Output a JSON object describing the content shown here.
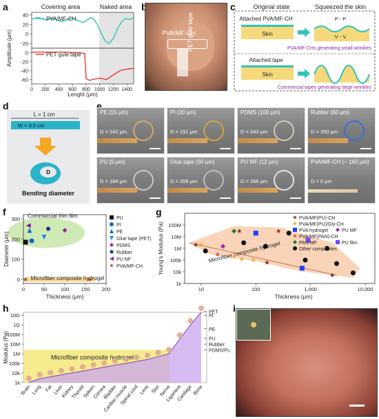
{
  "panels": {
    "a": {
      "label": "a",
      "region_left": "Covering area",
      "region_right": "Naked area",
      "ylabel": "Amplitude (μm)",
      "xlabel": "Lenght (μm)",
      "top": {
        "series_name": "PVA/MF-CH",
        "color": "#2ec4b6",
        "yticks": [
          "40",
          "20",
          "0",
          "-20"
        ],
        "ylim": [
          -30,
          45
        ],
        "x": [
          0,
          50,
          100,
          150,
          200,
          250,
          300,
          350,
          400,
          450,
          500,
          550,
          600,
          650,
          700,
          750,
          780,
          820,
          870,
          920,
          970,
          1020,
          1080,
          1140,
          1200,
          1260,
          1320,
          1380,
          1440,
          1500
        ],
        "y": [
          30,
          33,
          34,
          32,
          29,
          30,
          33,
          31,
          27,
          26,
          28,
          31,
          33,
          30,
          27,
          24,
          25,
          30,
          34,
          30,
          18,
          2,
          -15,
          -20,
          -10,
          10,
          25,
          32,
          30,
          34
        ]
      },
      "bottom": {
        "series_name": "PET gule tape",
        "color": "#e53935",
        "yticks": [
          "0",
          "-20",
          "-40",
          "-60"
        ],
        "ylim": [
          -70,
          10
        ],
        "x": [
          0,
          100,
          200,
          300,
          400,
          500,
          600,
          700,
          780,
          800,
          850,
          900,
          1000,
          1100,
          1200,
          1300,
          1400,
          1500
        ],
        "y": [
          1,
          1,
          1,
          1,
          1,
          1,
          0,
          0,
          -2,
          -58,
          -62,
          -60,
          -57,
          -60,
          -50,
          -40,
          -37,
          -35
        ]
      },
      "xticks": [
        "0",
        "200",
        "400",
        "600",
        "800",
        "1000",
        "1200",
        "1400"
      ]
    },
    "b": {
      "label": "b",
      "text1": "PVA/MF-CH",
      "text2": "PET glue tape"
    },
    "c": {
      "label": "c",
      "title_left": "Original state",
      "title_right": "Squeezed the skin",
      "attached1": "Attached PVA/MF-CH",
      "skin": "Skin",
      "pp": "P - P",
      "vv": "V - V",
      "caption1": "PVA/MF-CHs generating small wrinkles",
      "attached2": "Attached tape",
      "caption2": "Commercial tapes generating large wrinkles"
    },
    "d": {
      "label": "d",
      "length": "L = 1 cm",
      "width": "W = 0.5 cm",
      "D": "D",
      "caption": "Bending diameter"
    },
    "e": {
      "label": "e",
      "tiles": [
        {
          "name": "PE (15 μm)",
          "value": "D = 242 μm",
          "loop": "#d6a86a"
        },
        {
          "name": "PI (20 μm)",
          "value": "D = 191 μm",
          "loop": "#d4a43b"
        },
        {
          "name": "PDMS (100 μm)",
          "value": "D = 243 μm",
          "loop": "#cfc8b8"
        },
        {
          "name": "Rubber (60 μm)",
          "value": "D = 250 μm",
          "loop": "#3a6fd8"
        },
        {
          "name": "PU (5 μm)",
          "value": "D = 184 μm",
          "loop": "#c9c9c9"
        },
        {
          "name": "Glue tape (50 μm)",
          "value": "D = 209 μm",
          "loop": "#bdbdbd"
        },
        {
          "name": "PU MF (12 μm)",
          "value": "D = 266 μm",
          "loop": "#e3e3e3"
        },
        {
          "name": "PVA/MF-CH (~ 160 μm)",
          "value": "D = 0 μm",
          "loop": "none"
        }
      ]
    },
    "f": {
      "label": "f",
      "chart_data": {
        "type": "scatter",
        "xlabel": "Thickness (μm)",
        "ylabel": "Diameter (μm)",
        "xlim": [
          0,
          200
        ],
        "ylim": [
          -20,
          320
        ],
        "xticks": [
          "0",
          "50",
          "100",
          "150",
          "200"
        ],
        "yticks": [
          "0",
          "100",
          "200",
          "300"
        ],
        "annotation_top": "Commercial thin film",
        "annotation_bottom": "Microfiber composite hydrogel",
        "legend_position": "right",
        "series": [
          {
            "name": "PU",
            "color": "#111111",
            "shape": "square",
            "x": [
              5
            ],
            "y": [
              184
            ]
          },
          {
            "name": "PI",
            "color": "#1565c0",
            "shape": "circle",
            "x": [
              20
            ],
            "y": [
              191
            ]
          },
          {
            "name": "PE",
            "color": "#1565c0",
            "shape": "triangle",
            "x": [
              15
            ],
            "y": [
              242
            ]
          },
          {
            "name": "Glue tape (PET)",
            "color": "#1e88e5",
            "shape": "triangle-down",
            "x": [
              50
            ],
            "y": [
              209
            ]
          },
          {
            "name": "PDMS",
            "color": "#9c27b0",
            "shape": "diamond",
            "x": [
              100
            ],
            "y": [
              243
            ]
          },
          {
            "name": "Rubber",
            "color": "#283593",
            "shape": "pentagon",
            "x": [
              60
            ],
            "y": [
              250
            ]
          },
          {
            "name": "PU NF",
            "color": "#7b1fa2",
            "shape": "triangle-left",
            "x": [
              12
            ],
            "y": [
              266
            ]
          },
          {
            "name": "PVA/MF-CH",
            "color": "#a5512b",
            "shape": "star",
            "x": [
              5,
              160
            ],
            "y": [
              0,
              0
            ]
          }
        ]
      }
    },
    "g": {
      "label": "g",
      "chart_data": {
        "type": "scatter",
        "xlabel": "Thickness (μm)",
        "ylabel": "Young's Modulus (Pa)",
        "xscale": "log",
        "yscale": "log",
        "xlim": [
          5,
          15000
        ],
        "ylim": [
          1000,
          1000000000
        ],
        "xticks": [
          "10",
          "100",
          "1,000",
          "10,000"
        ],
        "yticks": [
          "1k",
          "10k",
          "100k",
          "1M",
          "10M",
          "100M"
        ],
        "annotation": "Microfiber composite hydrogel",
        "series": [
          {
            "name": "PVA/MF(PU)-CH",
            "color": "#8b2a1a",
            "shape": "star",
            "x": [
              8,
              50,
              160,
              260,
              2500
            ],
            "y": [
              2000000,
              30000000,
              60000,
              30000000,
              5000
            ]
          },
          {
            "name": "PVA/MF(PU)/Gly-CH",
            "color": "#f5a623",
            "shape": "star",
            "x": [
              10,
              40,
              55,
              90
            ],
            "y": [
              2000000,
              200000,
              120000,
              100000
            ]
          },
          {
            "name": "PVA hydrogel",
            "color": "#1e40ff",
            "shape": "square",
            "x": [
              100,
              700
            ],
            "y": [
              20000000,
              20000
            ]
          },
          {
            "name": "PVA/MF(PAN)-CH",
            "color": "#d94a4a",
            "shape": "star",
            "x": [
              12,
              20
            ],
            "y": [
              700000,
              300000
            ]
          },
          {
            "name": "PAN MF",
            "color": "#1a7f2e",
            "shape": "diamond",
            "x": [
              40
            ],
            "y": [
              30000000
            ]
          },
          {
            "name": "PU MF",
            "color": "#9c27b0",
            "shape": "diamond",
            "x": [
              25
            ],
            "y": [
              1500000
            ]
          },
          {
            "name": "PU film",
            "color": "#6b4cff",
            "shape": "square",
            "x": [
              900
            ],
            "y": [
              5000000
            ]
          },
          {
            "name": "Other composites",
            "color": "#111111",
            "shape": "circle",
            "x": [
              12,
              60,
              150,
              400,
              800,
              2000,
              3000,
              6000
            ],
            "y": [
              600000,
              3000000,
              1500000,
              20000000,
              100000,
              1000000,
              50000,
              8000
            ]
          }
        ]
      }
    },
    "h": {
      "label": "h",
      "chart_data": {
        "type": "area",
        "ylabel": "Modulus (Pa)",
        "yscale": "log",
        "yticks": [
          "10G",
          "1G",
          "100M",
          "10M",
          "1M",
          "100k",
          "10k",
          "1k"
        ],
        "categories": [
          "Brain",
          "Lung",
          "Fat",
          "Liver",
          "Kidney",
          "Thyroid",
          "Spleen",
          "Cornea",
          "Bladder",
          "Cardiac muscle",
          "Spinal cord",
          "Lens",
          "Skin",
          "Nerve",
          "Ligament",
          "Cartilage",
          "Bone"
        ],
        "values_log10": [
          3.0,
          3.4,
          3.6,
          3.8,
          4.0,
          4.2,
          4.4,
          4.6,
          4.8,
          5.0,
          5.2,
          5.4,
          5.7,
          6.0,
          7.5,
          9.0,
          10.3
        ],
        "annotation": "Microfiber composite hydrogel",
        "right_labels": [
          "PET",
          "PI",
          "PE",
          "PU",
          "Rubber",
          "PDMS/PU NF"
        ]
      }
    },
    "i": {
      "label": "i"
    }
  }
}
